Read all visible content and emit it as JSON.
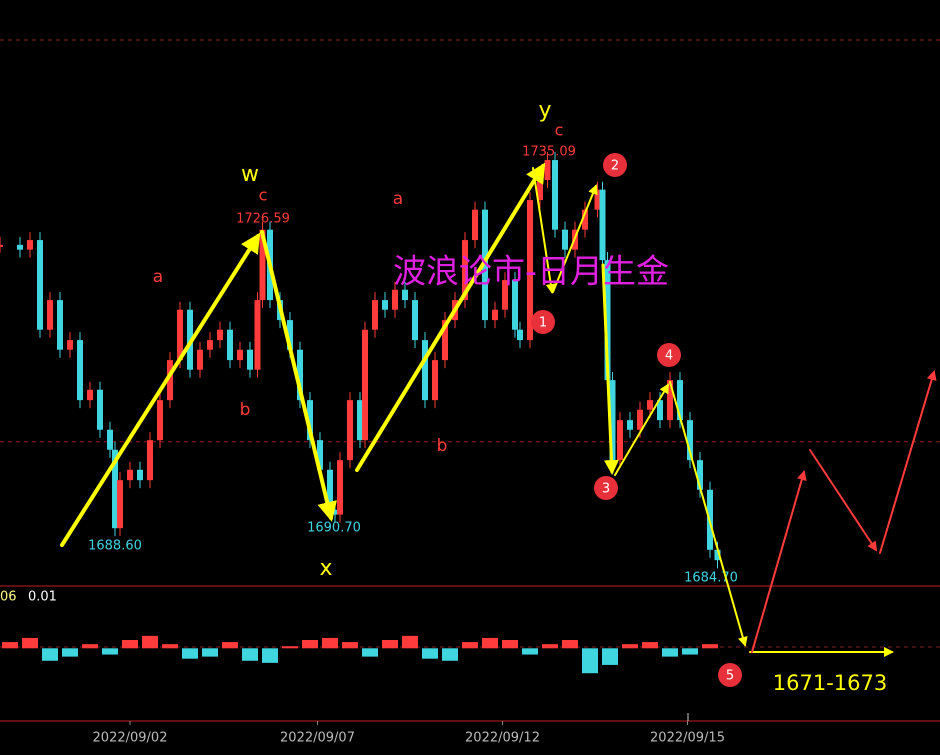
{
  "chart_data": [
    {
      "type": "candlestick",
      "x": [
        0,
        8,
        12,
        16,
        20,
        24,
        28,
        32,
        36,
        40,
        44,
        46,
        48,
        52,
        56,
        60,
        64,
        68,
        72,
        76,
        80,
        84,
        88,
        92,
        96,
        100,
        103,
        105,
        108,
        112,
        116,
        120,
        124,
        128,
        132,
        134,
        136,
        140,
        144,
        146,
        150,
        154,
        158,
        162,
        166,
        170,
        174,
        178,
        182,
        186,
        190,
        194,
        198,
        202,
        206,
        208,
        212,
        216,
        219,
        222,
        226,
        230,
        234,
        239,
        241,
        243,
        245,
        248,
        252,
        256,
        260,
        264,
        268,
        272,
        276,
        280,
        284,
        287
      ],
      "values": [
        1724.7,
        1724.1,
        1725.3,
        1714.1,
        1717.8,
        1711.6,
        1712.8,
        1705.3,
        1706.6,
        1701.6,
        1699.1,
        1689.3,
        1695.3,
        1696.6,
        1695.3,
        1700.3,
        1705.3,
        1710.3,
        1716.6,
        1709.1,
        1711.6,
        1712.8,
        1714.1,
        1710.3,
        1711.6,
        1709.1,
        1717.8,
        1726.6,
        1717.8,
        1715.3,
        1711.6,
        1705.3,
        1700.3,
        1696.6,
        1691.6,
        1691.0,
        1697.8,
        1705.3,
        1700.3,
        1714.1,
        1717.8,
        1716.6,
        1719.1,
        1717.8,
        1712.8,
        1705.3,
        1710.3,
        1715.3,
        1717.8,
        1725.3,
        1729.1,
        1715.3,
        1716.6,
        1720.3,
        1714.1,
        1712.8,
        1730.3,
        1732.8,
        1735.3,
        1726.6,
        1724.1,
        1726.6,
        1729.1,
        1731.6,
        1722.8,
        1707.8,
        1697.8,
        1702.8,
        1701.6,
        1704.1,
        1705.3,
        1702.8,
        1707.8,
        1702.8,
        1697.8,
        1694.1,
        1686.6,
        1685.3
      ],
      "xlim": [
        0,
        376
      ],
      "ylim": [
        1682.2,
        1755.3
      ],
      "grid_levels": [
        1750.3,
        1700.1
      ],
      "xticks": [
        {
          "value": 52,
          "label": "2022/09/02"
        },
        {
          "value": 127,
          "label": "2022/09/07"
        },
        {
          "value": 201,
          "label": "2022/09/12"
        },
        {
          "value": 275,
          "label": "2022/09/15"
        }
      ],
      "up_color": "#ff3b3b",
      "down_color": "#3fd6e0",
      "price_labels": [
        {
          "value": 1735.09,
          "label": "1735.09"
        },
        {
          "value": 1726.59,
          "label": "1726.59"
        },
        {
          "value": 1688.6,
          "label": "1688.60"
        },
        {
          "value": 1690.7,
          "label": "1690.70"
        },
        {
          "value": 1684.7,
          "label": "1684.70"
        }
      ]
    },
    {
      "type": "bar",
      "values": [
        0.003,
        0.005,
        -0.006,
        -0.004,
        0.002,
        -0.003,
        0.004,
        0.006,
        0.002,
        -0.005,
        -0.004,
        0.003,
        -0.006,
        -0.007,
        0.001,
        0.004,
        0.005,
        0.003,
        -0.004,
        0.004,
        0.006,
        -0.005,
        -0.006,
        0.003,
        0.005,
        0.004,
        -0.003,
        0.002,
        0.004,
        -0.012,
        -0.008,
        0.002,
        0.003,
        -0.004,
        -0.003,
        0.002
      ],
      "ylim": [
        -0.035,
        0.03
      ],
      "axis_labels": [
        "06",
        "0.01"
      ]
    }
  ],
  "annotations": {
    "waves": [
      "w",
      "c",
      "a",
      "b",
      "x",
      "a",
      "b",
      "y",
      "c"
    ],
    "points": [
      "1",
      "2",
      "3",
      "4",
      "5"
    ],
    "watermark": "波浪论市-日月生金",
    "target": "1671-1673"
  }
}
